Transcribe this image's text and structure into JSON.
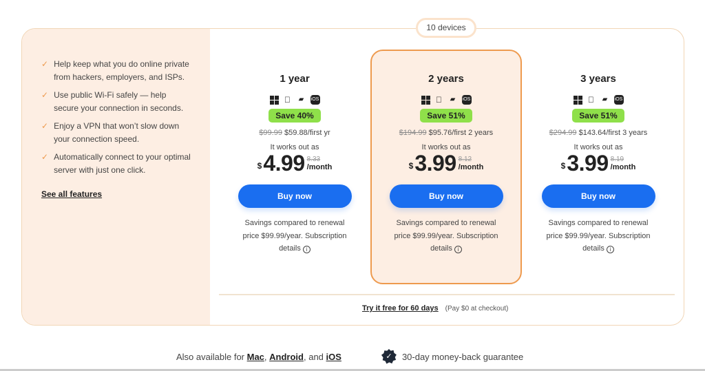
{
  "devices_label": "10 devices",
  "features": [
    {
      "icon": "check-icon",
      "text": "Help keep what you do online private from hackers, employers, and ISPs."
    },
    {
      "icon": "check-icon",
      "text": "Use public Wi-Fi safely — help secure your connection in seconds."
    },
    {
      "icon": "check-icon",
      "text": "Enjoy a VPN that won’t slow down your connection speed."
    },
    {
      "icon": "check-icon",
      "text": "Automatically connect to your optimal server with just one click."
    }
  ],
  "see_all": "See all features",
  "platform_icons": [
    "windows-icon",
    "apple-icon",
    "android-icon",
    "ios-icon"
  ],
  "ios_label": "iOS",
  "plans": [
    {
      "title": "1 year",
      "save": "Save 40%",
      "orig": "$99.99",
      "first": "$59.88/first yr",
      "works": "It works out as",
      "currency": "$",
      "price": "4.99",
      "old_monthly": "8.33",
      "per": "/month",
      "buy": "Buy now",
      "savings": "Savings compared to renewal price $99.99/year. Subscription details",
      "highlighted": false
    },
    {
      "title": "2 years",
      "save": "Save 51%",
      "orig": "$194.99",
      "first": "$95.76/first 2 years",
      "works": "It works out as",
      "currency": "$",
      "price": "3.99",
      "old_monthly": "8.12",
      "per": "/month",
      "buy": "Buy now",
      "savings": "Savings compared to renewal price $99.99/year. Subscription details",
      "highlighted": true
    },
    {
      "title": "3 years",
      "save": "Save 51%",
      "orig": "$294.99",
      "first": "$143.64/first 3 years",
      "works": "It works out as",
      "currency": "$",
      "price": "3.99",
      "old_monthly": "8.19",
      "per": "/month",
      "buy": "Buy now",
      "savings": "Savings compared to renewal price $99.99/year. Subscription details",
      "highlighted": false
    }
  ],
  "trial": {
    "link": "Try it free for 60 days",
    "note": "(Pay $0 at checkout)"
  },
  "footer": {
    "also": "Also available for",
    "mac": "Mac",
    "android": "Android",
    "and": ", and",
    "ios": "iOS",
    "guarantee": "30-day money-back guarantee"
  },
  "colors": {
    "accent": "#ee9a4e",
    "button": "#1a6ef0",
    "save_badge": "#8fe04a",
    "panel": "#fdeee3"
  }
}
